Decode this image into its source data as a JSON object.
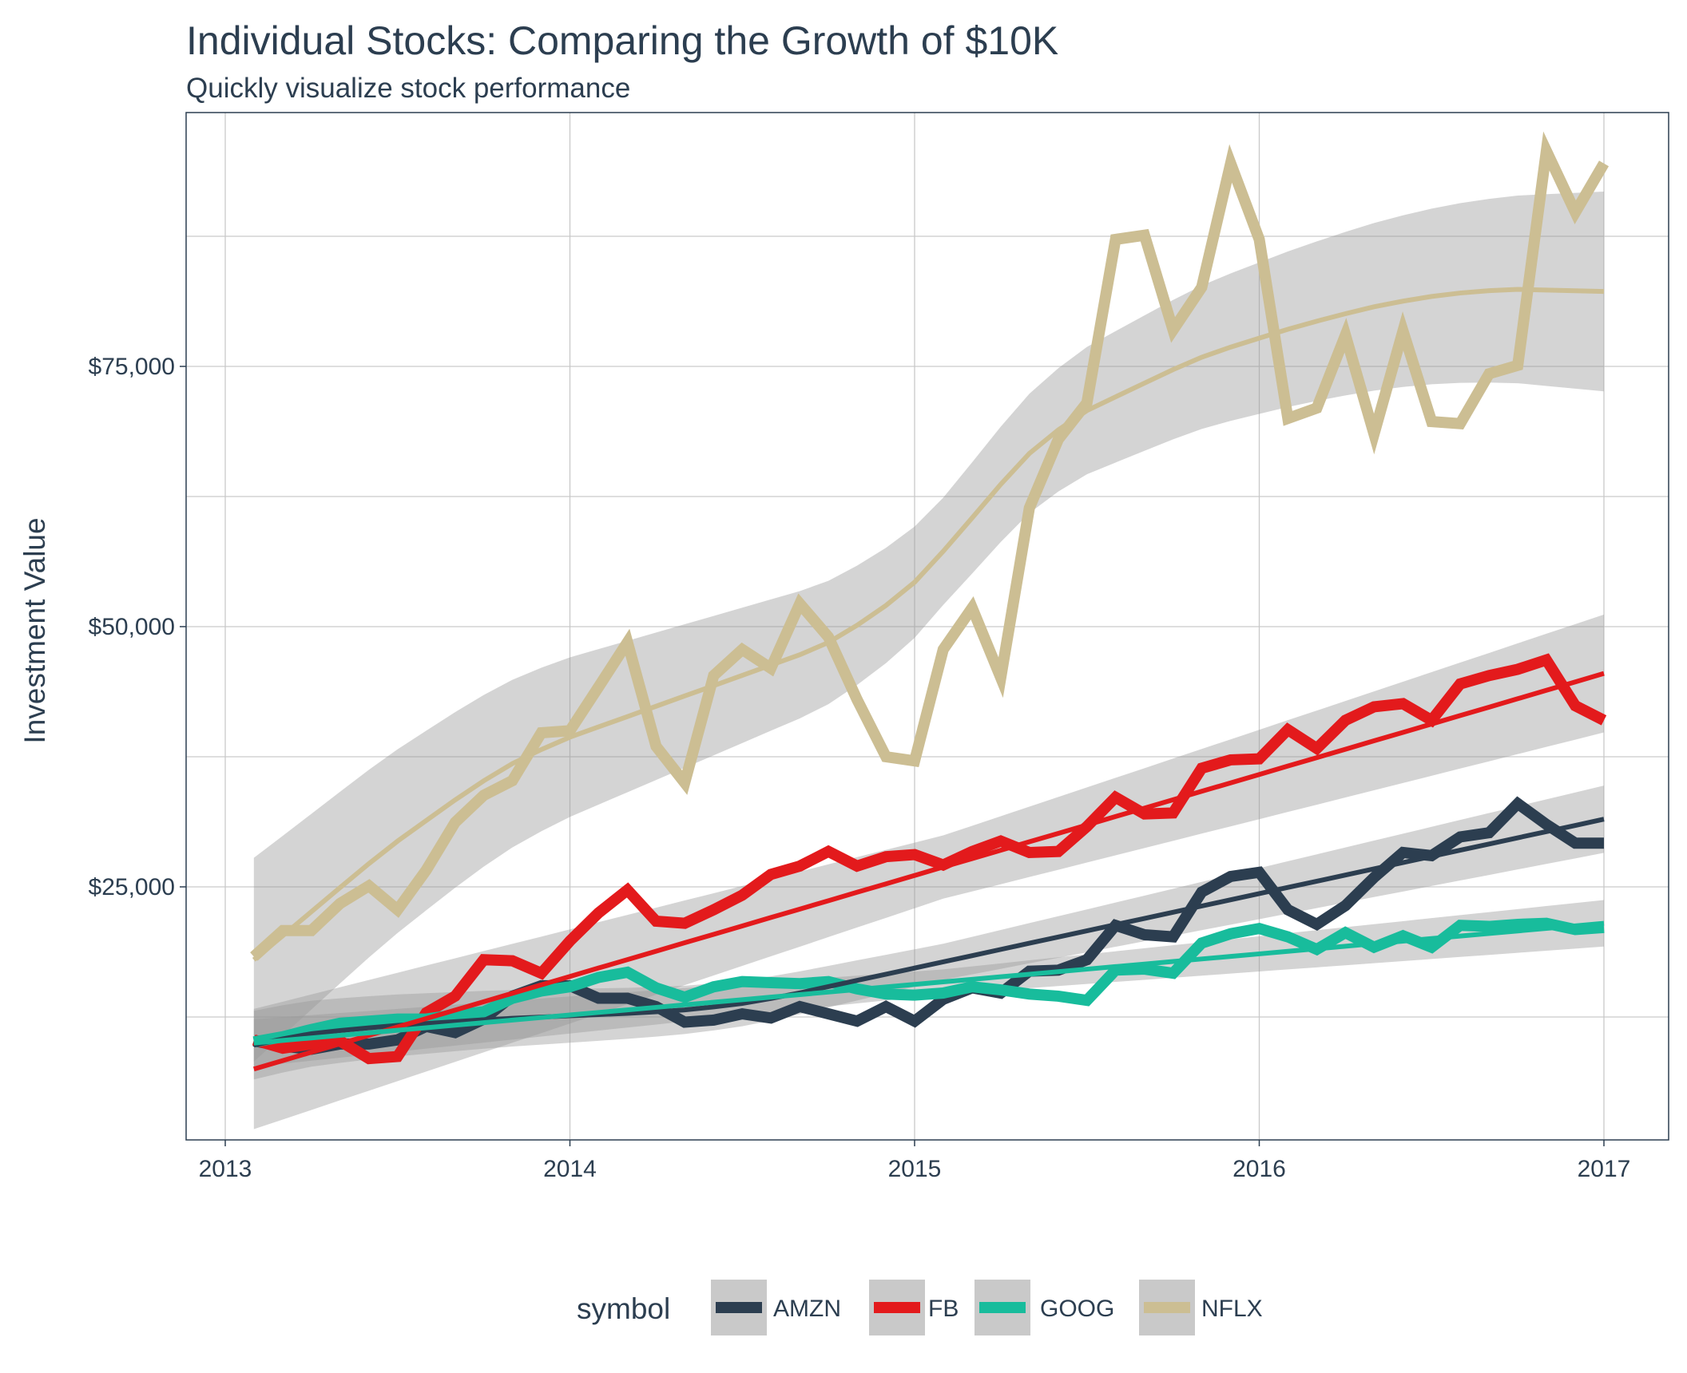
{
  "chart_data": {
    "type": "line",
    "title": "Individual Stocks: Comparing the Growth of $10K",
    "subtitle": "Quickly visualize stock performance",
    "xlabel": "",
    "ylabel": "Investment Value",
    "xlim": [
      2012.95,
      2017.05
    ],
    "ylim": [
      2500,
      97500
    ],
    "x_ticks": [
      2013,
      2014,
      2015,
      2016,
      2017
    ],
    "x_tick_labels": [
      "2013",
      "2014",
      "2015",
      "2016",
      "2017"
    ],
    "y_ticks": [
      25000,
      50000,
      75000
    ],
    "y_tick_labels": [
      "$25,000",
      "$50,000",
      "$75,000"
    ],
    "grid": true,
    "legend": {
      "title": "symbol",
      "position": "bottom"
    },
    "x": [
      2013.083,
      2013.167,
      2013.25,
      2013.333,
      2013.417,
      2013.5,
      2013.583,
      2013.667,
      2013.75,
      2013.833,
      2013.917,
      2014.0,
      2014.083,
      2014.167,
      2014.25,
      2014.333,
      2014.417,
      2014.5,
      2014.583,
      2014.667,
      2014.75,
      2014.833,
      2014.917,
      2015.0,
      2015.083,
      2015.167,
      2015.25,
      2015.333,
      2015.417,
      2015.5,
      2015.583,
      2015.667,
      2015.75,
      2015.833,
      2015.917,
      2016.0,
      2016.083,
      2016.167,
      2016.25,
      2016.333,
      2016.417,
      2016.5,
      2016.583,
      2016.667,
      2016.75,
      2016.833,
      2016.917,
      2017.0
    ],
    "series": [
      {
        "name": "AMZN",
        "color": "#2c3e50",
        "values": [
          10200,
          9700,
          9400,
          9900,
          9900,
          10300,
          11600,
          11000,
          12300,
          14500,
          15500,
          15500,
          14300,
          14300,
          13500,
          12000,
          12200,
          12800,
          12400,
          13500,
          12800,
          12100,
          13500,
          12100,
          14200,
          15300,
          14800,
          16900,
          17000,
          18000,
          21300,
          20400,
          20200,
          24500,
          26000,
          26400,
          22800,
          21400,
          23200,
          25900,
          28300,
          28000,
          29800,
          30200,
          33000,
          31000,
          29200,
          29200
        ],
        "trend": [
          9800,
          10800,
          11300,
          11700,
          12000,
          12300,
          12500,
          12700,
          12900,
          13200,
          13700,
          14500,
          15500,
          16500,
          17500,
          18500,
          19500,
          20500,
          21500,
          22500,
          23500,
          24500,
          25500,
          26500,
          27500,
          28500,
          29500,
          30500,
          31500
        ],
        "trend_x": [
          2013.083,
          2013.25,
          2013.417,
          2013.583,
          2013.75,
          2013.917,
          2014.083,
          2014.25,
          2014.417,
          2014.583,
          2014.75,
          2014.917,
          2015.083,
          2015.25,
          2015.417,
          2015.583,
          2015.75,
          2015.917,
          2016.083,
          2016.25,
          2016.417,
          2016.583,
          2016.75,
          2016.917,
          2017.0,
          2017.0,
          2017.0,
          2017.0,
          2017.0
        ]
      },
      {
        "name": "FB",
        "color": "#e31a1c",
        "values": [
          10300,
          9500,
          9900,
          10200,
          8500,
          8700,
          12900,
          14500,
          18000,
          17900,
          16700,
          19800,
          22500,
          24700,
          21700,
          21500,
          22800,
          24200,
          26200,
          27000,
          28400,
          27000,
          27900,
          28100,
          27100,
          28400,
          29400,
          28300,
          28400,
          30800,
          33600,
          32000,
          32100,
          36400,
          37200,
          37300,
          40100,
          38300,
          41000,
          42300,
          42600,
          41000,
          44500,
          45300,
          45900,
          46800,
          42400,
          41000
        ],
        "trend_linear": [
          7500,
          45500
        ]
      },
      {
        "name": "GOOG",
        "color": "#18BC9C",
        "values": [
          10100,
          10600,
          11300,
          11900,
          12100,
          12300,
          12300,
          12700,
          13000,
          14300,
          15000,
          15400,
          16300,
          16800,
          15300,
          14400,
          15400,
          15900,
          15800,
          15700,
          15900,
          15200,
          14700,
          14600,
          14800,
          15400,
          15100,
          14700,
          14500,
          14100,
          17000,
          17100,
          16700,
          19600,
          20500,
          21000,
          20200,
          19000,
          20600,
          19200,
          20300,
          19200,
          21300,
          21200,
          21400,
          21500,
          20900,
          21100
        ],
        "trend_linear": [
          10000,
          21500
        ]
      },
      {
        "name": "NFLX",
        "color": "#CCBE93",
        "values": [
          18300,
          20800,
          20800,
          23400,
          25100,
          22800,
          26600,
          31200,
          33800,
          35200,
          39800,
          40000,
          44200,
          48500,
          38500,
          35000,
          45300,
          47800,
          46000,
          52200,
          49000,
          43000,
          37500,
          37100,
          47800,
          51800,
          45100,
          61400,
          68000,
          71500,
          87200,
          87600,
          78500,
          82600,
          94500,
          87200,
          70000,
          71000,
          78000,
          68500,
          78400,
          69700,
          69500,
          74300,
          75100,
          95700,
          89800,
          94500
        ],
        "trend": [
          18000,
          21500,
          25000,
          28500,
          31500,
          34500,
          37000,
          39000,
          40500,
          42000,
          43500,
          45000,
          46500,
          48000,
          50500,
          53500,
          58000,
          63000,
          67500,
          70500,
          72500,
          74500,
          76300,
          77600,
          78900,
          80000,
          81000,
          81700,
          82200,
          82400,
          82300,
          82200
        ]
      }
    ]
  }
}
